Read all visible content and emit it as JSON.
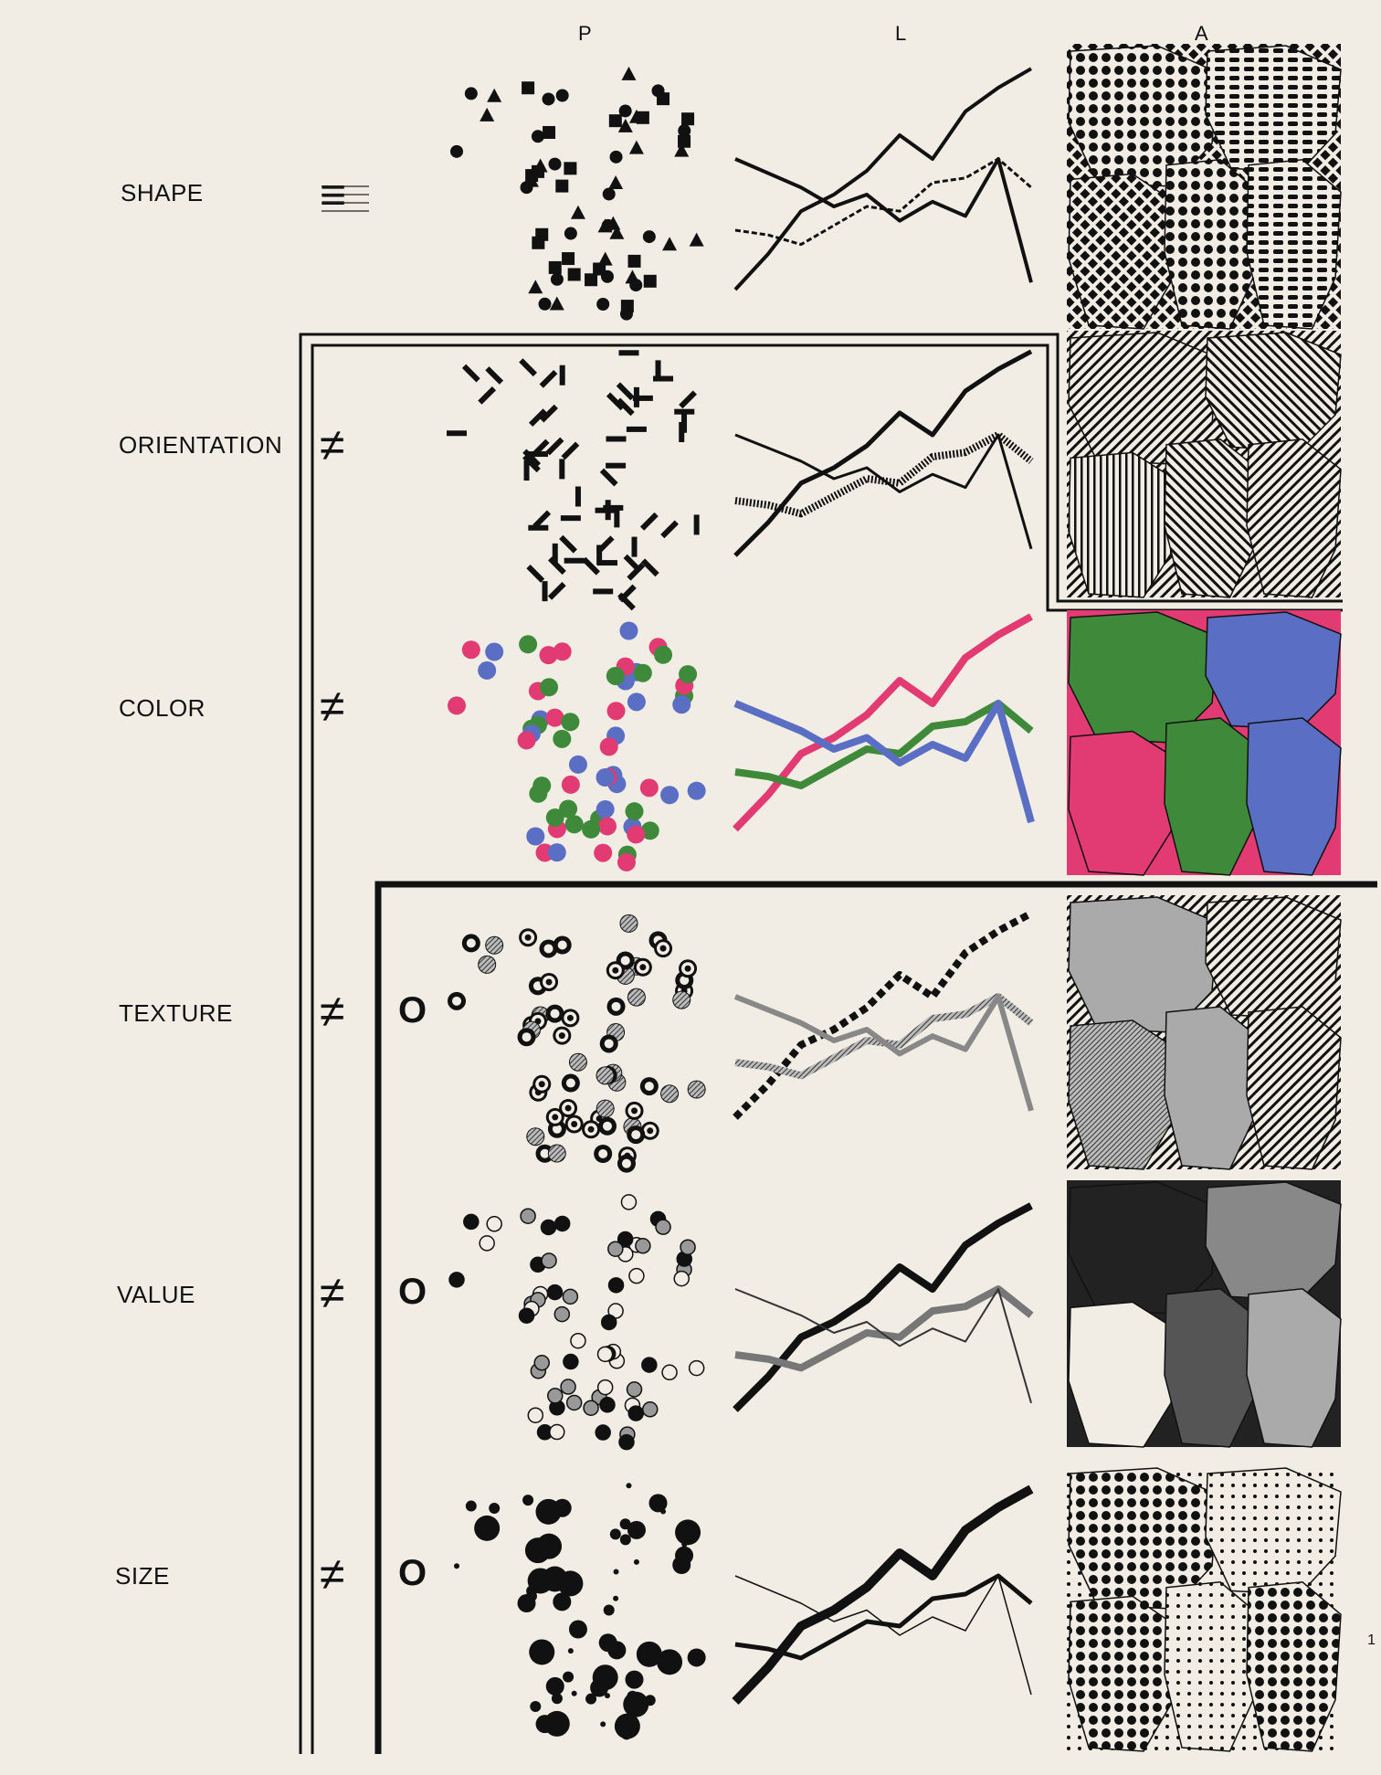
{
  "columns": [
    "P",
    "L",
    "A"
  ],
  "rows": [
    {
      "label": "SHAPE",
      "symbol": "≡",
      "zero": ""
    },
    {
      "label": "ORIENTATION",
      "symbol": "≠",
      "zero": ""
    },
    {
      "label": "COLOR",
      "symbol": "≠",
      "zero": ""
    },
    {
      "label": "TEXTURE",
      "symbol": "≠",
      "zero": "O"
    },
    {
      "label": "VALUE",
      "symbol": "≠",
      "zero": "O"
    },
    {
      "label": "SIZE",
      "symbol": "≠",
      "zero": "O"
    }
  ],
  "page_number": "1",
  "colors": {
    "paper": "#f1ede4",
    "ink": "#111111",
    "pink": "#e23a72",
    "green": "#3f8a3a",
    "blue": "#5a6fc4"
  }
}
